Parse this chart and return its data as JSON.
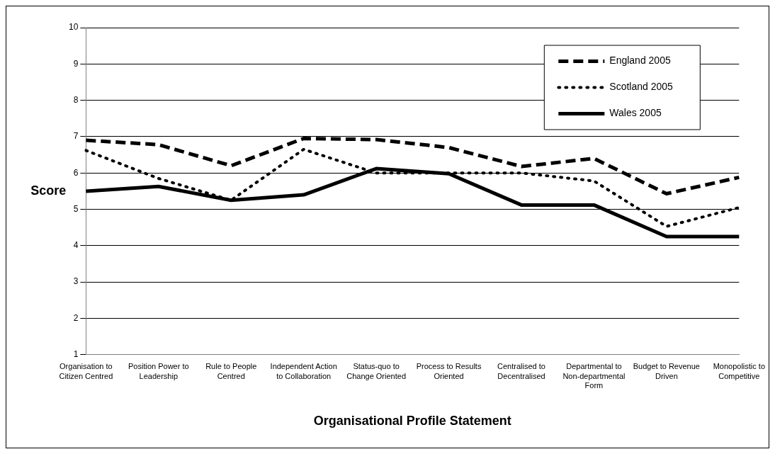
{
  "chart_data": {
    "type": "line",
    "xlabel": "Organisational Profile Statement",
    "ylabel": "Score",
    "categories": [
      "Organisation to Citizen Centred",
      "Position Power to Leadership",
      "Rule to People Centred",
      "Independent Action to Collaboration",
      "Status-quo to Change Oriented",
      "Process to Results Oriented",
      "Centralised to Decentralised",
      "Departmental to Non-departmental Form",
      "Budget to Revenue Driven",
      "Monopolistic to Competitive"
    ],
    "series": [
      {
        "name": "England 2005",
        "color": "#000000",
        "line_style": "dashed",
        "values": [
          6.9,
          6.78,
          6.2,
          6.95,
          6.92,
          6.7,
          6.18,
          6.4,
          5.43,
          5.88
        ]
      },
      {
        "name": "Scotland 2005",
        "color": "#000000",
        "line_style": "dotted",
        "values": [
          6.62,
          5.85,
          5.25,
          6.65,
          6.0,
          6.0,
          6.0,
          5.78,
          4.53,
          5.05
        ]
      },
      {
        "name": "Wales 2005",
        "color": "#000000",
        "line_style": "solid",
        "values": [
          5.5,
          5.63,
          5.25,
          5.4,
          6.12,
          5.98,
          5.12,
          5.12,
          4.25,
          4.25
        ]
      }
    ],
    "ylim": [
      1,
      10
    ],
    "yticks": [
      1,
      2,
      3,
      4,
      5,
      6,
      7,
      8,
      9,
      10
    ],
    "grid": "y",
    "legend": "top right",
    "marker": "none"
  }
}
